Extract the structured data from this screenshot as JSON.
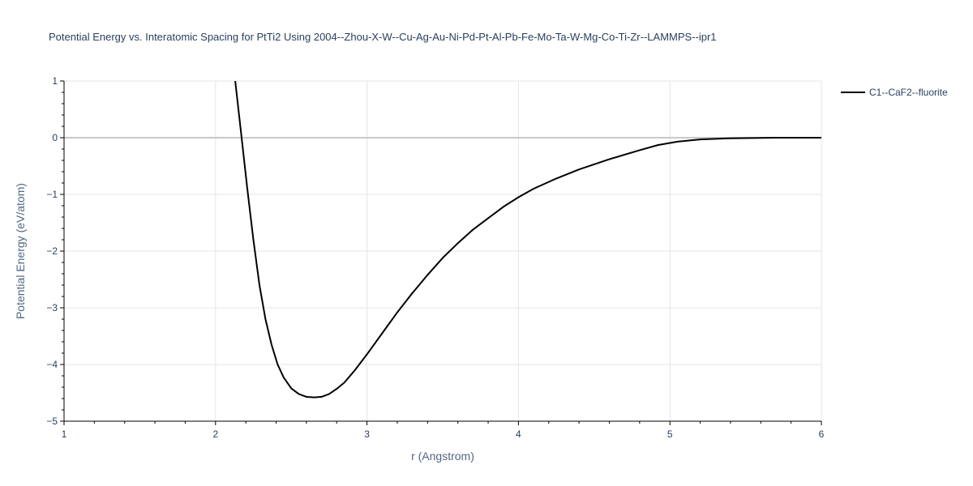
{
  "chart_data": {
    "type": "line",
    "title": "Potential Energy vs. Interatomic Spacing for PtTi2 Using 2004--Zhou-X-W--Cu-Ag-Au-Ni-Pd-Pt-Al-Pb-Fe-Mo-Ta-W-Mg-Co-Ti-Zr--LAMMPS--ipr1",
    "xlabel": "r (Angstrom)",
    "ylabel": "Potential Energy (eV/atom)",
    "xlim": [
      1,
      6
    ],
    "ylim": [
      -5,
      1
    ],
    "x_ticks": [
      1,
      2,
      3,
      4,
      5,
      6
    ],
    "y_ticks": [
      1,
      0,
      -1,
      -2,
      -3,
      -4,
      -5
    ],
    "x_tick_labels": [
      "1",
      "2",
      "3",
      "4",
      "5",
      "6"
    ],
    "y_tick_labels": [
      "1",
      "0",
      "−1",
      "−2",
      "−3",
      "−4",
      "−5"
    ],
    "grid": true,
    "legend_position": "top-right",
    "series": [
      {
        "name": "C1--CaF2--fluorite",
        "color": "#000000",
        "x": [
          2.13,
          2.17,
          2.21,
          2.25,
          2.29,
          2.33,
          2.37,
          2.41,
          2.45,
          2.5,
          2.55,
          2.6,
          2.65,
          2.7,
          2.75,
          2.8,
          2.85,
          2.92,
          3.0,
          3.1,
          3.2,
          3.3,
          3.4,
          3.5,
          3.6,
          3.7,
          3.8,
          3.9,
          4.0,
          4.1,
          4.25,
          4.4,
          4.6,
          4.8,
          4.92,
          5.05,
          5.2,
          5.4,
          5.7,
          6.0
        ],
        "y": [
          1.0,
          0.05,
          -0.9,
          -1.8,
          -2.6,
          -3.2,
          -3.65,
          -4.0,
          -4.23,
          -4.42,
          -4.52,
          -4.57,
          -4.58,
          -4.57,
          -4.52,
          -4.43,
          -4.32,
          -4.1,
          -3.82,
          -3.45,
          -3.08,
          -2.74,
          -2.42,
          -2.12,
          -1.86,
          -1.62,
          -1.42,
          -1.22,
          -1.05,
          -0.9,
          -0.72,
          -0.56,
          -0.38,
          -0.22,
          -0.13,
          -0.07,
          -0.03,
          -0.01,
          0.0,
          0.0
        ]
      }
    ]
  }
}
